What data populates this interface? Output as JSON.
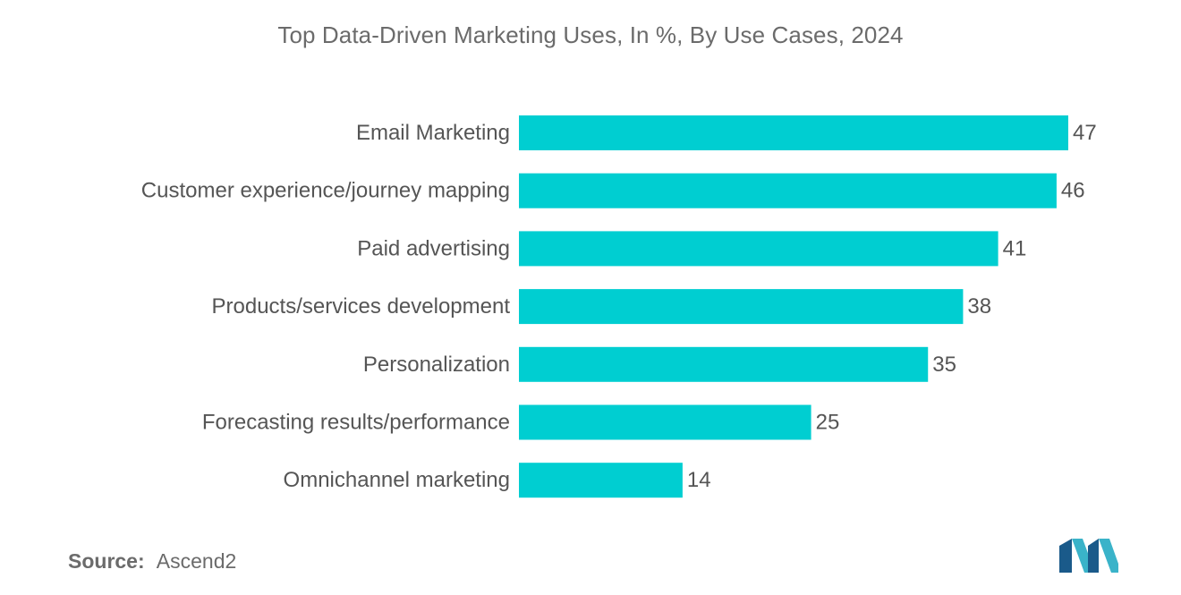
{
  "chart_data": {
    "type": "bar",
    "orientation": "horizontal",
    "title": "Top Data-Driven Marketing Uses, In %, By Use Cases, 2024",
    "categories": [
      "Email Marketing",
      "Customer experience/journey mapping",
      "Paid advertising",
      "Products/services development",
      "Personalization",
      "Forecasting results/performance",
      "Omnichannel marketing"
    ],
    "values": [
      47,
      46,
      41,
      38,
      35,
      25,
      14
    ],
    "xlim": [
      0,
      47
    ],
    "grid": false,
    "legend": "none",
    "bar_color": "#00CED1",
    "data_labels": true
  },
  "footer": {
    "source_label": "Source:",
    "source_value": "Ascend2"
  },
  "colors": {
    "title": "#6b6b6b",
    "text": "#555555",
    "bar": "#00CED1",
    "logo_dark": "#1a5a8a",
    "logo_light": "#3ab3c9"
  },
  "logo": {
    "icon": "mordor-intelligence-logo-icon"
  }
}
